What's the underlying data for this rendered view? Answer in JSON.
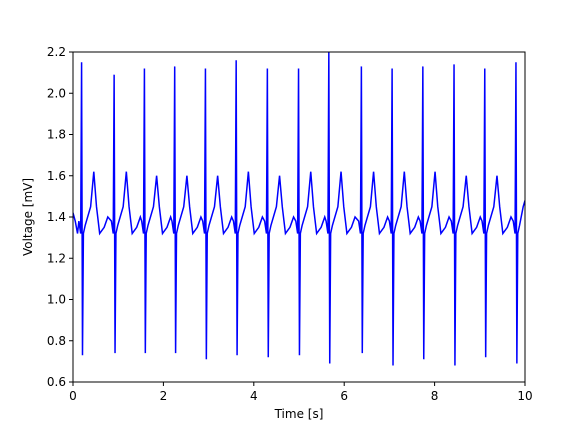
{
  "chart_data": {
    "type": "line",
    "xlabel": "Time [s]",
    "ylabel": "Voltage [mV]",
    "xlim": [
      0,
      10
    ],
    "xticks": [
      0,
      2,
      4,
      6,
      8,
      10
    ],
    "ylim": [
      0.6,
      2.2
    ],
    "yticks": [
      0.6,
      0.8,
      {
        "value": 1.0,
        "label": "1.0"
      },
      1.2,
      1.4,
      1.6,
      1.8,
      {
        "value": 2.0,
        "label": "2.0"
      },
      2.2
    ],
    "grid": false,
    "series": [
      {
        "color": "#0000ff",
        "x": [
          0,
          0.05,
          0.1,
          0.13,
          0.17,
          0.19,
          0.21,
          0.23,
          0.27,
          0.39,
          0.46,
          0.52,
          0.59,
          0.69,
          0.77,
          0.85,
          0.89,
          0.91,
          0.93,
          0.95,
          0.99,
          1.11,
          1.18,
          1.24,
          1.31,
          1.41,
          1.49,
          1.52,
          1.56,
          1.58,
          1.6,
          1.62,
          1.66,
          1.78,
          1.85,
          1.91,
          1.98,
          2.08,
          2.16,
          2.19,
          2.23,
          2.25,
          2.27,
          2.29,
          2.33,
          2.45,
          2.52,
          2.58,
          2.65,
          2.75,
          2.83,
          2.87,
          2.91,
          2.93,
          2.95,
          2.97,
          3.01,
          3.13,
          3.2,
          3.26,
          3.33,
          3.43,
          3.51,
          3.55,
          3.59,
          3.61,
          3.63,
          3.65,
          3.69,
          3.81,
          3.88,
          3.94,
          4.01,
          4.11,
          4.19,
          4.24,
          4.28,
          4.3,
          4.32,
          4.34,
          4.38,
          4.5,
          4.57,
          4.63,
          4.7,
          4.8,
          4.88,
          4.93,
          4.97,
          4.99,
          5.01,
          5.03,
          5.07,
          5.19,
          5.26,
          5.32,
          5.39,
          5.49,
          5.57,
          5.6,
          5.64,
          5.66,
          5.68,
          5.7,
          5.74,
          5.86,
          5.93,
          5.99,
          6.06,
          6.16,
          6.24,
          6.32,
          6.36,
          6.38,
          6.4,
          6.42,
          6.46,
          6.58,
          6.65,
          6.71,
          6.78,
          6.88,
          6.96,
          7.0,
          7.04,
          7.06,
          7.08,
          7.1,
          7.14,
          7.26,
          7.33,
          7.39,
          7.46,
          7.56,
          7.64,
          7.68,
          7.72,
          7.74,
          7.76,
          7.78,
          7.82,
          7.94,
          8.01,
          8.07,
          8.14,
          8.24,
          8.32,
          8.37,
          8.41,
          8.43,
          8.45,
          8.47,
          8.51,
          8.63,
          8.7,
          8.76,
          8.83,
          8.93,
          9.01,
          9.05,
          9.09,
          9.11,
          9.13,
          9.15,
          9.19,
          9.31,
          9.38,
          9.44,
          9.51,
          9.61,
          9.69,
          9.74,
          9.78,
          9.8,
          9.82,
          9.84,
          9.88,
          9.96,
          10.0
        ],
        "values": [
          1.42,
          1.38,
          1.32,
          1.38,
          1.32,
          2.15,
          0.73,
          1.32,
          1.36,
          1.45,
          1.62,
          1.45,
          1.32,
          1.35,
          1.4,
          1.38,
          1.32,
          2.09,
          0.74,
          1.32,
          1.36,
          1.45,
          1.62,
          1.45,
          1.32,
          1.35,
          1.4,
          1.38,
          1.32,
          2.12,
          0.74,
          1.32,
          1.36,
          1.45,
          1.6,
          1.45,
          1.32,
          1.35,
          1.4,
          1.38,
          1.32,
          2.13,
          0.74,
          1.32,
          1.36,
          1.45,
          1.6,
          1.45,
          1.32,
          1.35,
          1.4,
          1.38,
          1.32,
          2.12,
          0.71,
          1.32,
          1.36,
          1.45,
          1.6,
          1.45,
          1.32,
          1.35,
          1.4,
          1.38,
          1.32,
          2.16,
          0.73,
          1.32,
          1.36,
          1.45,
          1.62,
          1.45,
          1.32,
          1.35,
          1.4,
          1.38,
          1.32,
          2.12,
          0.72,
          1.32,
          1.36,
          1.45,
          1.6,
          1.45,
          1.32,
          1.35,
          1.4,
          1.38,
          1.32,
          2.12,
          0.73,
          1.32,
          1.36,
          1.45,
          1.62,
          1.45,
          1.32,
          1.35,
          1.4,
          1.38,
          1.32,
          2.2,
          0.69,
          1.32,
          1.36,
          1.45,
          1.62,
          1.45,
          1.32,
          1.35,
          1.4,
          1.38,
          1.32,
          2.13,
          0.74,
          1.32,
          1.36,
          1.45,
          1.62,
          1.45,
          1.32,
          1.35,
          1.4,
          1.38,
          1.32,
          2.12,
          0.68,
          1.32,
          1.36,
          1.45,
          1.62,
          1.45,
          1.32,
          1.35,
          1.4,
          1.38,
          1.32,
          2.13,
          0.71,
          1.32,
          1.36,
          1.45,
          1.62,
          1.45,
          1.32,
          1.35,
          1.4,
          1.38,
          1.32,
          2.14,
          0.68,
          1.32,
          1.36,
          1.45,
          1.6,
          1.45,
          1.32,
          1.35,
          1.4,
          1.38,
          1.32,
          2.12,
          0.72,
          1.32,
          1.36,
          1.45,
          1.6,
          1.45,
          1.32,
          1.35,
          1.4,
          1.38,
          1.32,
          2.15,
          0.69,
          1.32,
          1.36,
          1.45,
          1.48
        ]
      }
    ]
  }
}
